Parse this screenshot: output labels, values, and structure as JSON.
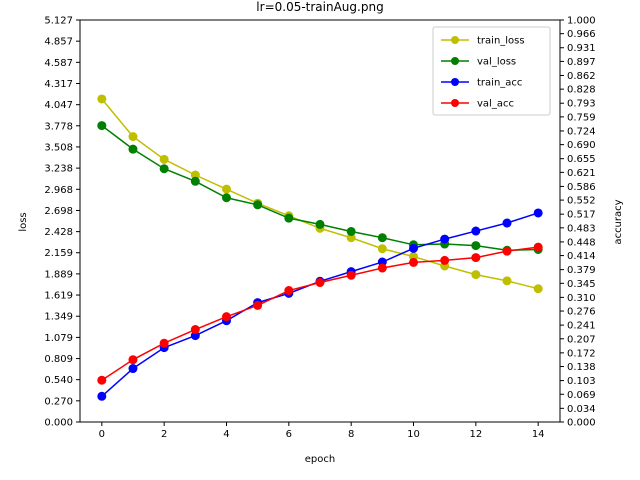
{
  "chart_data": {
    "type": "line",
    "title": "lr=0.05-trainAug.png",
    "xlabel": "epoch",
    "ylabel": "loss",
    "y2label": "accuracy",
    "xlim": [
      -0.7,
      14.7
    ],
    "ylim": [
      0,
      5.127
    ],
    "y2lim": [
      0,
      1.0
    ],
    "x": [
      0,
      1,
      2,
      3,
      4,
      5,
      6,
      7,
      8,
      9,
      10,
      11,
      12,
      13,
      14
    ],
    "x_ticks": [
      "0",
      "2",
      "4",
      "6",
      "8",
      "10",
      "12",
      "14"
    ],
    "y_ticks": [
      "0.000",
      "0.270",
      "0.540",
      "0.809",
      "1.079",
      "1.349",
      "1.619",
      "1.889",
      "2.159",
      "2.428",
      "2.698",
      "2.968",
      "3.238",
      "3.508",
      "3.778",
      "4.047",
      "4.317",
      "4.587",
      "4.857",
      "5.127"
    ],
    "y2_ticks": [
      "0.000",
      "0.034",
      "0.069",
      "0.103",
      "0.138",
      "0.172",
      "0.207",
      "0.241",
      "0.276",
      "0.310",
      "0.345",
      "0.379",
      "0.414",
      "0.448",
      "0.483",
      "0.517",
      "0.552",
      "0.586",
      "0.621",
      "0.655",
      "0.690",
      "0.724",
      "0.759",
      "0.793",
      "0.828",
      "0.862",
      "0.897",
      "0.931",
      "0.966",
      "1.000"
    ],
    "legend_position": "upper right",
    "grid": false,
    "series": [
      {
        "name": "train_loss",
        "axis": "left",
        "color": "#bfbf00",
        "values": [
          4.12,
          3.64,
          3.35,
          3.15,
          2.97,
          2.79,
          2.63,
          2.47,
          2.35,
          2.21,
          2.11,
          1.99,
          1.88,
          1.8,
          1.7
        ]
      },
      {
        "name": "val_loss",
        "axis": "left",
        "color": "#008000",
        "values": [
          3.78,
          3.48,
          3.23,
          3.07,
          2.86,
          2.77,
          2.6,
          2.52,
          2.43,
          2.35,
          2.26,
          2.27,
          2.25,
          2.19,
          2.2
        ]
      },
      {
        "name": "train_acc",
        "axis": "right",
        "color": "#0000ff",
        "values": [
          0.064,
          0.133,
          0.185,
          0.215,
          0.252,
          0.297,
          0.32,
          0.35,
          0.374,
          0.398,
          0.432,
          0.455,
          0.475,
          0.495,
          0.52
        ]
      },
      {
        "name": "val_acc",
        "axis": "right",
        "color": "#ff0000",
        "values": [
          0.104,
          0.155,
          0.196,
          0.23,
          0.262,
          0.29,
          0.327,
          0.347,
          0.365,
          0.383,
          0.397,
          0.402,
          0.409,
          0.425,
          0.435
        ]
      }
    ]
  }
}
